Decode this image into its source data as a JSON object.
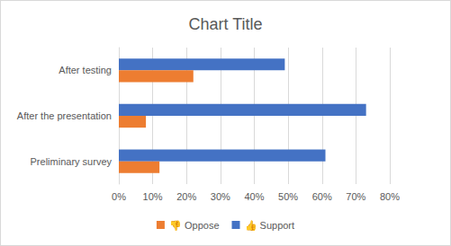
{
  "chart_data": {
    "type": "bar",
    "title": "Chart Title",
    "orientation": "horizontal",
    "categories": [
      "Preliminary survey",
      "After the presentation",
      "After testing"
    ],
    "series": [
      {
        "name": "👍 Support",
        "color": "#4472c4",
        "values": [
          61,
          73,
          49
        ]
      },
      {
        "name": "👎 Oppose",
        "color": "#ed7d31",
        "values": [
          12,
          8,
          22
        ]
      }
    ],
    "xlim": [
      0,
      80
    ],
    "xticks": [
      {
        "value": 0,
        "label": "0%"
      },
      {
        "value": 10,
        "label": "10%"
      },
      {
        "value": 20,
        "label": "20%"
      },
      {
        "value": 30,
        "label": "30%"
      },
      {
        "value": 40,
        "label": "40%"
      },
      {
        "value": 50,
        "label": "50%"
      },
      {
        "value": 60,
        "label": "60%"
      },
      {
        "value": 70,
        "label": "70%"
      },
      {
        "value": 80,
        "label": "80%"
      }
    ],
    "grid": true,
    "legend": "bottom"
  }
}
